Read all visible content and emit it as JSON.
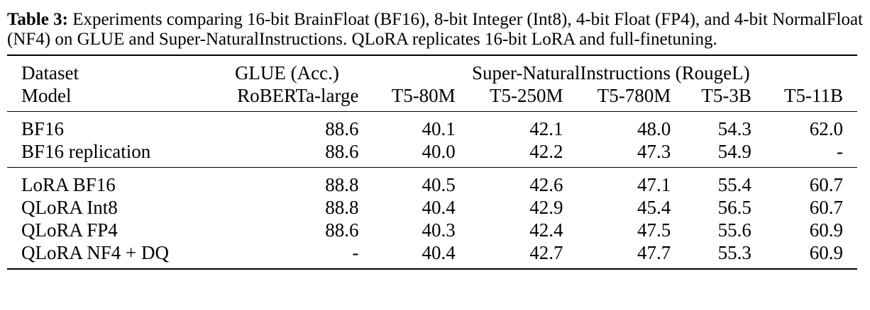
{
  "caption": {
    "label": "Table 3:",
    "text": "Experiments comparing 16-bit BrainFloat (BF16), 8-bit Integer (Int8), 4-bit Float (FP4), and 4-bit NormalFloat (NF4) on GLUE and Super-NaturalInstructions. QLoRA replicates 16-bit LoRA and full-finetuning."
  },
  "table": {
    "header_row1": {
      "dataset_label": "Dataset",
      "glue_label": "GLUE (Acc.)",
      "sni_label": "Super-NaturalInstructions (RougeL)"
    },
    "header_row2": {
      "model_label": "Model",
      "columns": [
        "RoBERTa-large",
        "T5-80M",
        "T5-250M",
        "T5-780M",
        "T5-3B",
        "T5-11B"
      ]
    },
    "group1": [
      {
        "name": "BF16",
        "values": [
          "88.6",
          "40.1",
          "42.1",
          "48.0",
          "54.3",
          "62.0"
        ]
      },
      {
        "name": "BF16 replication",
        "values": [
          "88.6",
          "40.0",
          "42.2",
          "47.3",
          "54.9",
          "-"
        ]
      }
    ],
    "group2": [
      {
        "name": "LoRA BF16",
        "values": [
          "88.8",
          "40.5",
          "42.6",
          "47.1",
          "55.4",
          "60.7"
        ]
      },
      {
        "name": "QLoRA Int8",
        "values": [
          "88.8",
          "40.4",
          "42.9",
          "45.4",
          "56.5",
          "60.7"
        ]
      },
      {
        "name": "QLoRA FP4",
        "values": [
          "88.6",
          "40.3",
          "42.4",
          "47.5",
          "55.6",
          "60.9"
        ]
      },
      {
        "name": "QLoRA NF4 + DQ",
        "values": [
          "-",
          "40.4",
          "42.7",
          "47.7",
          "55.3",
          "60.9"
        ]
      }
    ]
  }
}
